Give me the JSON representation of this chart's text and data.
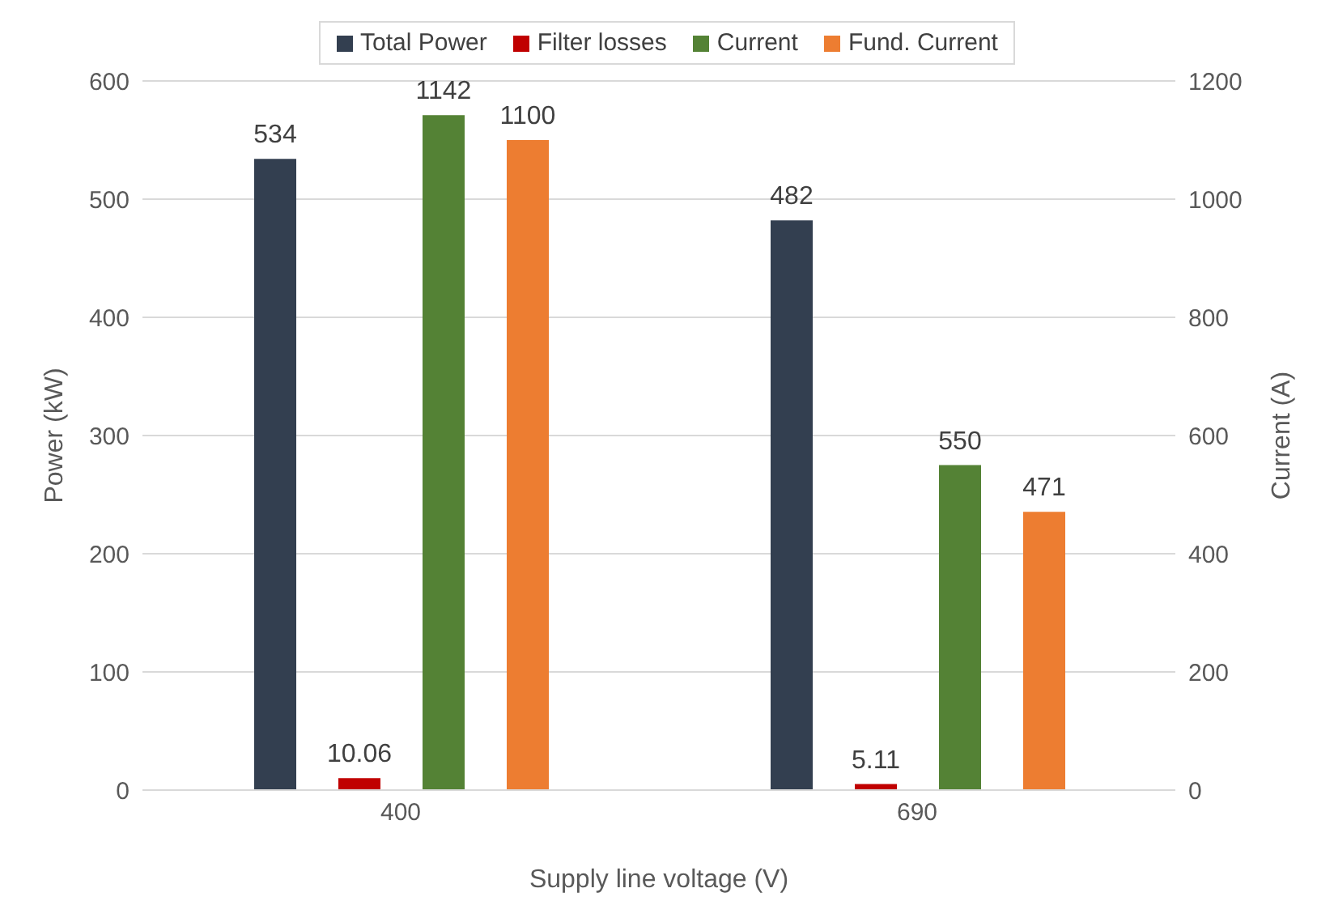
{
  "chart_data": {
    "type": "bar",
    "categories": [
      "400",
      "690"
    ],
    "xlabel": "Supply line voltage (V)",
    "ylabel": "Power (kW)",
    "y2label": "Current (A)",
    "series": [
      {
        "name": "Total Power",
        "color": "#333f50",
        "values": [
          534,
          482
        ]
      },
      {
        "name": "Filter losses",
        "color": "#c00000",
        "values": [
          10.06,
          5.11
        ]
      },
      {
        "name": "Current",
        "color": "#548235",
        "values": [
          1142,
          550
        ],
        "axis": "y2"
      },
      {
        "name": "Fund. Current",
        "color": "#ed7d31",
        "values": [
          1100,
          471
        ],
        "axis": "y2"
      }
    ],
    "ylim": [
      0,
      600
    ],
    "yticks": [
      0,
      100,
      200,
      300,
      400,
      500,
      600
    ],
    "y2lim": [
      0,
      1200
    ],
    "y2ticks": [
      0,
      200,
      400,
      600,
      800,
      1000,
      1200
    ],
    "grid": "y",
    "legend": "top",
    "data_labels": true
  }
}
